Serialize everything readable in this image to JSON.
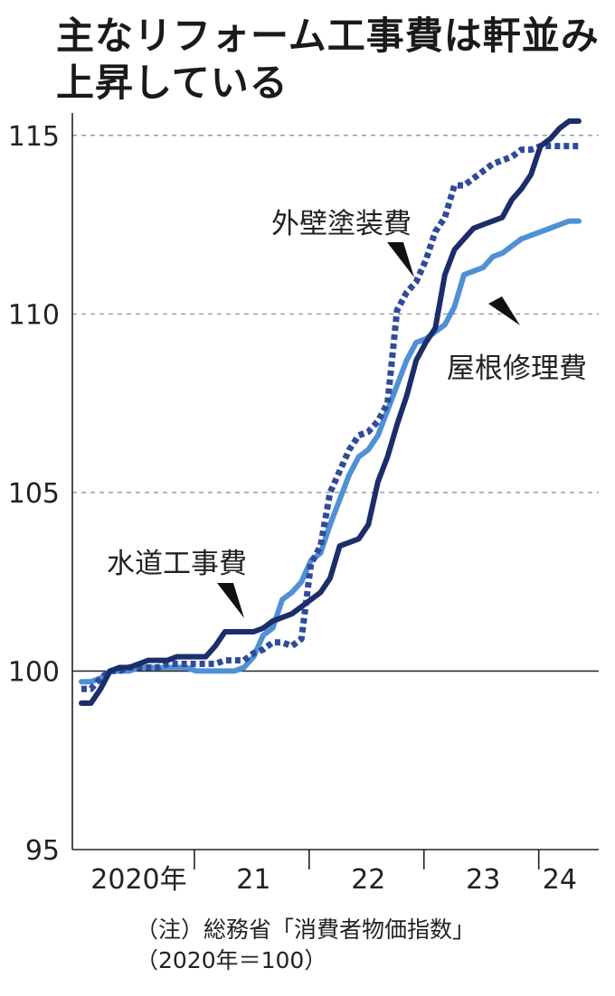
{
  "title_lines": [
    "主なリフォーム工事費は軒並み",
    "上昇している"
  ],
  "note_lines": [
    "（注）総務省「消費者物価指数」",
    "（2020年＝100）"
  ],
  "chart_data": {
    "type": "line",
    "title": "主なリフォーム工事費は軒並み上昇している",
    "ylim": [
      95,
      115.5
    ],
    "y_ticks": [
      95,
      100,
      105,
      110,
      115
    ],
    "x_range": [
      "2020-01",
      "2024-05"
    ],
    "x_tick_labels": [
      {
        "label": "2020年",
        "at": "2020-07"
      },
      {
        "label": "21",
        "at": "2021-07"
      },
      {
        "label": "22",
        "at": "2022-07"
      },
      {
        "label": "23",
        "at": "2023-07"
      },
      {
        "label": "24",
        "at": "2024-03"
      }
    ],
    "year_boundaries": [
      "2021-01",
      "2022-01",
      "2023-01",
      "2024-01"
    ],
    "grid": "dashed horizontal",
    "reference_line": 100,
    "series": [
      {
        "name": "水道工事費",
        "color": "#1c2d6b",
        "style": "solid",
        "x": [
          "2020-01",
          "2020-02",
          "2020-03",
          "2020-04",
          "2020-05",
          "2020-06",
          "2020-07",
          "2020-08",
          "2020-09",
          "2020-10",
          "2020-11",
          "2020-12",
          "2021-01",
          "2021-02",
          "2021-03",
          "2021-04",
          "2021-05",
          "2021-06",
          "2021-07",
          "2021-08",
          "2021-09",
          "2021-10",
          "2021-11",
          "2021-12",
          "2022-01",
          "2022-02",
          "2022-03",
          "2022-04",
          "2022-05",
          "2022-06",
          "2022-07",
          "2022-08",
          "2022-09",
          "2022-10",
          "2022-11",
          "2022-12",
          "2023-01",
          "2023-02",
          "2023-03",
          "2023-04",
          "2023-05",
          "2023-06",
          "2023-07",
          "2023-08",
          "2023-09",
          "2023-10",
          "2023-11",
          "2023-12",
          "2024-01",
          "2024-02",
          "2024-03",
          "2024-04",
          "2024-05"
        ],
        "values": [
          99.1,
          99.1,
          99.5,
          100.0,
          100.1,
          100.1,
          100.2,
          100.3,
          100.3,
          100.3,
          100.4,
          100.4,
          100.4,
          100.4,
          100.7,
          101.1,
          101.1,
          101.1,
          101.1,
          101.2,
          101.4,
          101.5,
          101.6,
          101.8,
          102.0,
          102.2,
          102.6,
          103.5,
          103.6,
          103.7,
          104.1,
          105.3,
          106.0,
          106.9,
          107.7,
          108.7,
          109.2,
          109.6,
          111.1,
          111.8,
          112.1,
          112.4,
          112.5,
          112.6,
          112.7,
          113.2,
          113.5,
          113.9,
          114.7,
          114.9,
          115.2,
          115.4,
          115.4
        ]
      },
      {
        "name": "外壁塗装費",
        "color": "#2f4b9a",
        "style": "dotted",
        "x": [
          "2020-01",
          "2020-02",
          "2020-03",
          "2020-04",
          "2020-05",
          "2020-06",
          "2020-07",
          "2020-08",
          "2020-09",
          "2020-10",
          "2020-11",
          "2020-12",
          "2021-01",
          "2021-02",
          "2021-03",
          "2021-04",
          "2021-05",
          "2021-06",
          "2021-07",
          "2021-08",
          "2021-09",
          "2021-10",
          "2021-11",
          "2021-12",
          "2022-01",
          "2022-02",
          "2022-03",
          "2022-04",
          "2022-05",
          "2022-06",
          "2022-07",
          "2022-08",
          "2022-09",
          "2022-10",
          "2022-11",
          "2022-12",
          "2023-01",
          "2023-02",
          "2023-03",
          "2023-04",
          "2023-05",
          "2023-06",
          "2023-07",
          "2023-08",
          "2023-09",
          "2023-10",
          "2023-11",
          "2023-12",
          "2024-01",
          "2024-02",
          "2024-03",
          "2024-04",
          "2024-05"
        ],
        "values": [
          99.5,
          99.5,
          99.8,
          100.0,
          100.0,
          100.1,
          100.1,
          100.1,
          100.1,
          100.2,
          100.2,
          100.2,
          100.2,
          100.2,
          100.2,
          100.3,
          100.3,
          100.3,
          100.5,
          100.6,
          100.8,
          100.8,
          100.7,
          100.9,
          103.0,
          103.5,
          105.0,
          105.6,
          106.2,
          106.6,
          106.7,
          107.0,
          107.5,
          110.1,
          110.6,
          110.9,
          111.5,
          112.3,
          112.7,
          113.6,
          113.6,
          113.8,
          114.0,
          114.2,
          114.3,
          114.4,
          114.6,
          114.6,
          114.7,
          114.7,
          114.7,
          114.7,
          114.7
        ]
      },
      {
        "name": "屋根修理費",
        "color": "#4f90d6",
        "style": "solid",
        "x": [
          "2020-01",
          "2020-02",
          "2020-03",
          "2020-04",
          "2020-05",
          "2020-06",
          "2020-07",
          "2020-08",
          "2020-09",
          "2020-10",
          "2020-11",
          "2020-12",
          "2021-01",
          "2021-02",
          "2021-03",
          "2021-04",
          "2021-05",
          "2021-06",
          "2021-07",
          "2021-08",
          "2021-09",
          "2021-10",
          "2021-11",
          "2021-12",
          "2022-01",
          "2022-02",
          "2022-03",
          "2022-04",
          "2022-05",
          "2022-06",
          "2022-07",
          "2022-08",
          "2022-09",
          "2022-10",
          "2022-11",
          "2022-12",
          "2023-01",
          "2023-02",
          "2023-03",
          "2023-04",
          "2023-05",
          "2023-06",
          "2023-07",
          "2023-08",
          "2023-09",
          "2023-10",
          "2023-11",
          "2023-12",
          "2024-01",
          "2024-02",
          "2024-03",
          "2024-04",
          "2024-05"
        ],
        "values": [
          99.7,
          99.7,
          99.8,
          100.0,
          100.0,
          100.0,
          100.1,
          100.1,
          100.1,
          100.1,
          100.1,
          100.1,
          100.0,
          100.0,
          100.0,
          100.0,
          100.0,
          100.1,
          100.4,
          101.0,
          101.2,
          102.0,
          102.2,
          102.5,
          103.1,
          103.3,
          104.1,
          104.8,
          105.5,
          106.0,
          106.2,
          106.6,
          107.3,
          108.0,
          108.7,
          109.2,
          109.3,
          109.5,
          109.7,
          110.2,
          111.1,
          111.2,
          111.3,
          111.6,
          111.7,
          111.9,
          112.1,
          112.2,
          112.3,
          112.4,
          112.5,
          112.6,
          112.6
        ]
      }
    ],
    "series_labels": [
      "水道工事費",
      "外壁塗装費",
      "屋根修理費"
    ]
  }
}
